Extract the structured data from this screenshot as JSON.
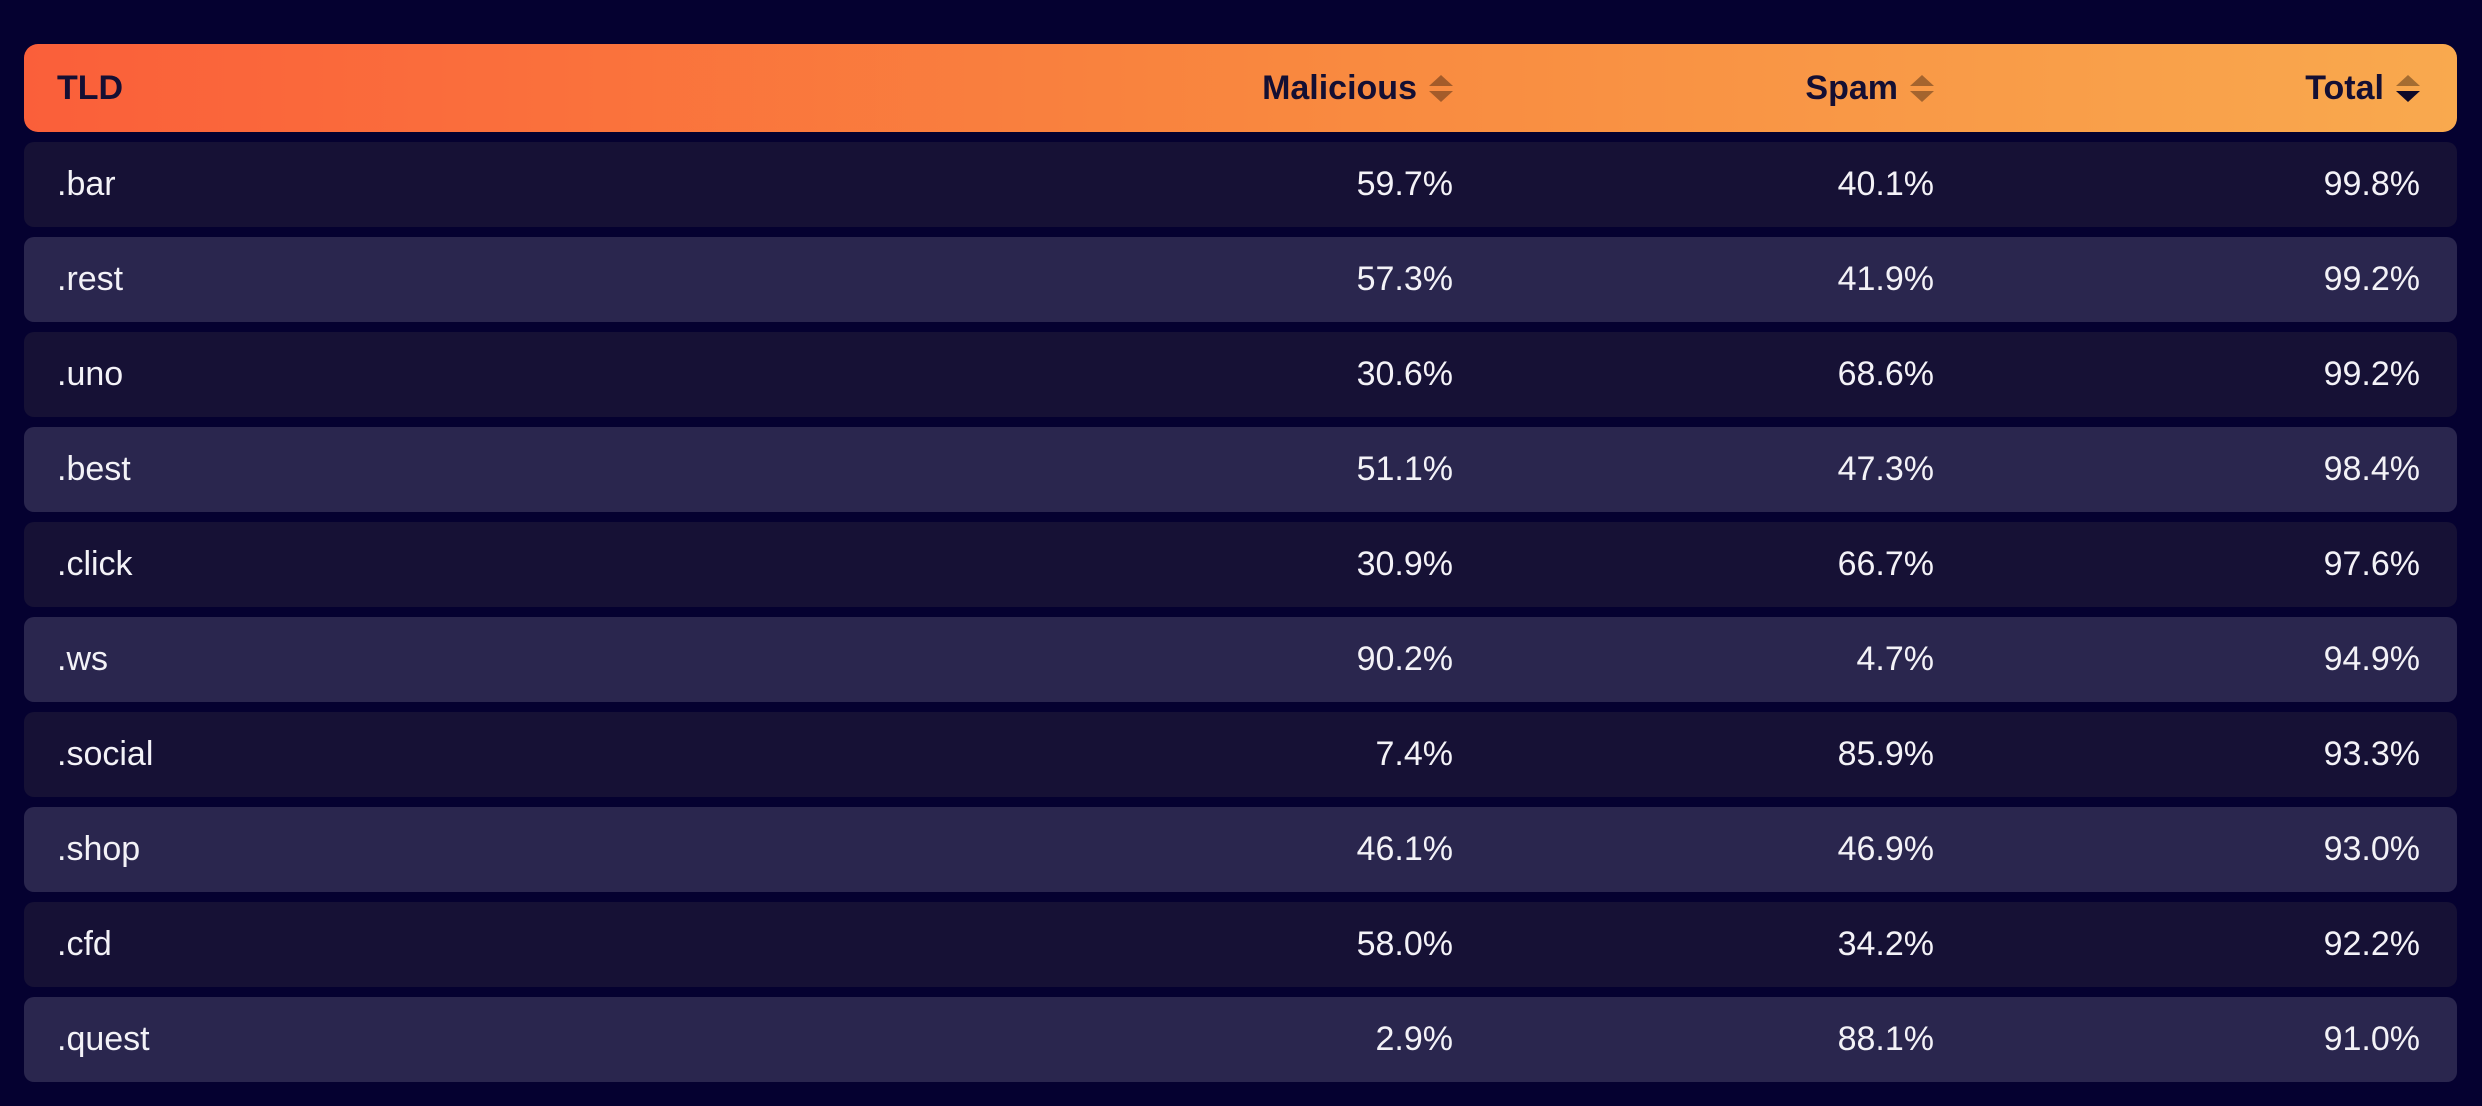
{
  "palette": {
    "background": "#050130",
    "header_gradient_start": "#fa5f3a",
    "header_gradient_mid": "#f9883f",
    "header_gradient_end": "#f9a94e",
    "header_text": "#140f33",
    "row_dark": "#161135",
    "row_light": "#2a264e",
    "row_text": "#f3f2f7",
    "sort_icon_inactive": "rgba(25,12,5,0.38)",
    "sort_icon_active": "#0e0a29"
  },
  "table": {
    "columns": [
      {
        "key": "tld",
        "label": "TLD",
        "sortable": false,
        "sort": "none",
        "align": "left"
      },
      {
        "key": "malicious",
        "label": "Malicious",
        "sortable": true,
        "sort": "none",
        "align": "right"
      },
      {
        "key": "spam",
        "label": "Spam",
        "sortable": true,
        "sort": "none",
        "align": "right"
      },
      {
        "key": "total",
        "label": "Total",
        "sortable": true,
        "sort": "desc",
        "align": "right"
      }
    ],
    "rows": [
      {
        "tld": ".bar",
        "malicious": "59.7%",
        "spam": "40.1%",
        "total": "99.8%"
      },
      {
        "tld": ".rest",
        "malicious": "57.3%",
        "spam": "41.9%",
        "total": "99.2%"
      },
      {
        "tld": ".uno",
        "malicious": "30.6%",
        "spam": "68.6%",
        "total": "99.2%"
      },
      {
        "tld": ".best",
        "malicious": "51.1%",
        "spam": "47.3%",
        "total": "98.4%"
      },
      {
        "tld": ".click",
        "malicious": "30.9%",
        "spam": "66.7%",
        "total": "97.6%"
      },
      {
        "tld": ".ws",
        "malicious": "90.2%",
        "spam": "4.7%",
        "total": "94.9%"
      },
      {
        "tld": ".social",
        "malicious": "7.4%",
        "spam": "85.9%",
        "total": "93.3%"
      },
      {
        "tld": ".shop",
        "malicious": "46.1%",
        "spam": "46.9%",
        "total": "93.0%"
      },
      {
        "tld": ".cfd",
        "malicious": "58.0%",
        "spam": "34.2%",
        "total": "92.2%"
      },
      {
        "tld": ".quest",
        "malicious": "2.9%",
        "spam": "88.1%",
        "total": "91.0%"
      }
    ]
  }
}
